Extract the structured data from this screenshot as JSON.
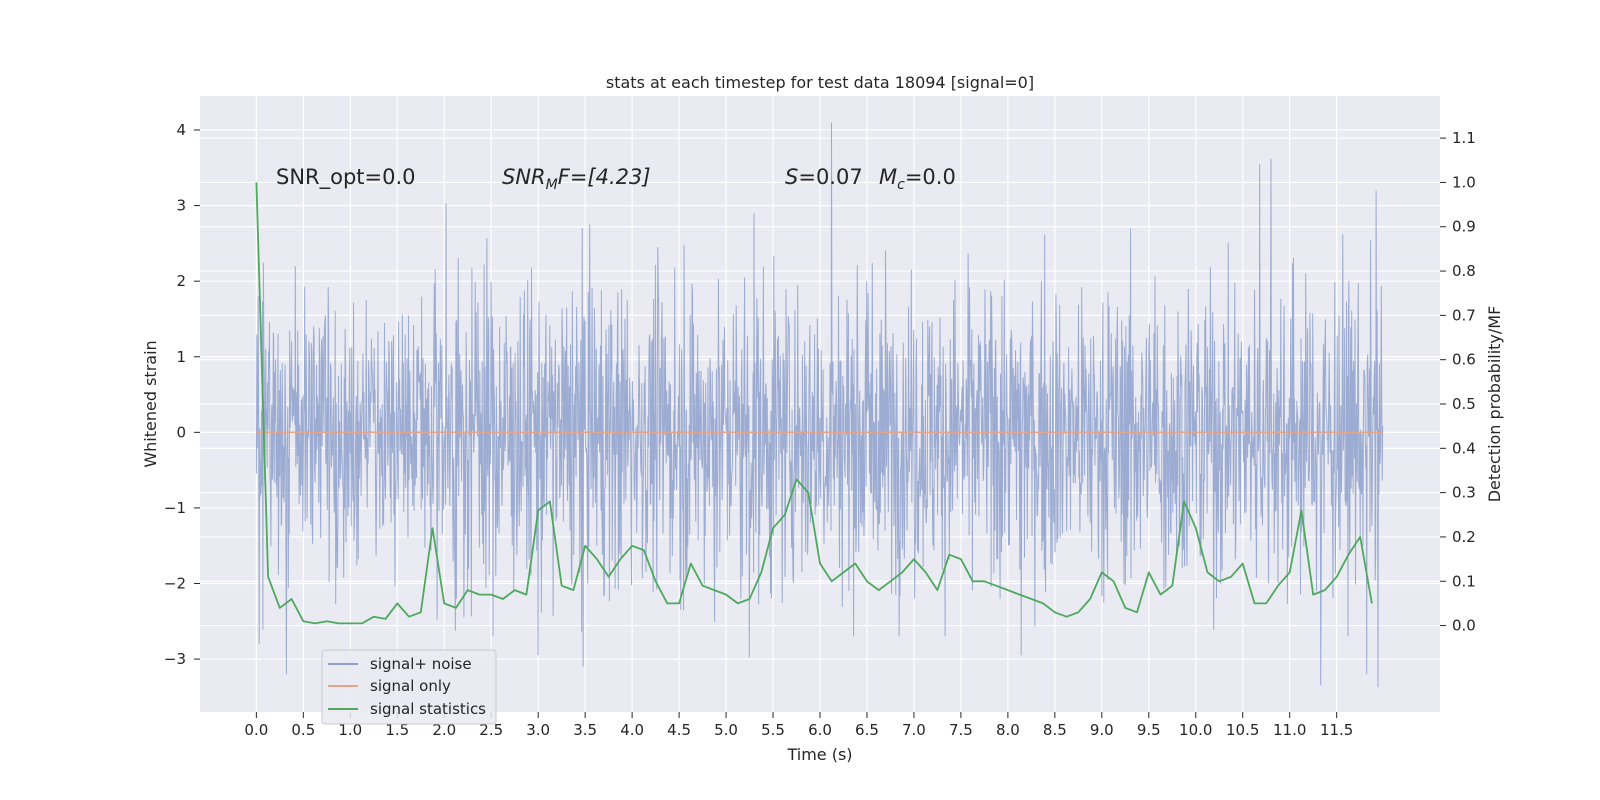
{
  "chart_data": {
    "type": "line",
    "title": "stats at each timestep for test data 18094 [signal=0]",
    "xlabel": "Time (s)",
    "ylabel": "Whitened strain",
    "ylabel_right": "Detection probability/MF",
    "x_ticks": [
      "0.0",
      "0.5",
      "1.0",
      "1.5",
      "2.0",
      "2.5",
      "3.0",
      "3.5",
      "4.0",
      "4.5",
      "5.0",
      "5.5",
      "6.0",
      "6.5",
      "7.0",
      "7.5",
      "8.0",
      "8.5",
      "9.0",
      "9.5",
      "10.0",
      "10.5",
      "11.0",
      "11.5"
    ],
    "y_ticks": [
      "−3",
      "−2",
      "−1",
      "0",
      "1",
      "2",
      "3",
      "4"
    ],
    "y2_ticks": [
      "0.0",
      "0.1",
      "0.2",
      "0.3",
      "0.4",
      "0.5",
      "0.6",
      "0.7",
      "0.8",
      "0.9",
      "1.0",
      "1.1"
    ],
    "xlim": [
      -0.6,
      12.6
    ],
    "ylim": [
      -3.7,
      4.45
    ],
    "y2lim": [
      -0.195,
      1.195
    ],
    "grid": true,
    "legend_position": "lower-left",
    "annotations": {
      "snr_opt": "SNR_opt=0.0",
      "snr_mf_base": "SNR",
      "snr_mf_sub": "M",
      "snr_mf_rest": "F=[4.23]",
      "s_stat_sym": "S",
      "s_stat_val": "=0.07",
      "mc_sym": "M",
      "mc_sub": "c",
      "mc_val": "=0.0"
    },
    "series": [
      {
        "name": "signal+ noise",
        "color": "#8da0cb",
        "kind": "noise",
        "x_range": [
          0.0,
          11.99
        ],
        "typical_amplitude": 1.0,
        "extremes": [
          {
            "x": 0.02,
            "y": 1.8
          },
          {
            "x": 0.03,
            "y": -2.8
          },
          {
            "x": 0.32,
            "y": -3.2
          },
          {
            "x": 2.02,
            "y": 3.03
          },
          {
            "x": 3.0,
            "y": -2.95
          },
          {
            "x": 3.48,
            "y": -3.1
          },
          {
            "x": 3.55,
            "y": 2.75
          },
          {
            "x": 5.25,
            "y": -2.98
          },
          {
            "x": 5.3,
            "y": 2.9
          },
          {
            "x": 6.12,
            "y": 4.1
          },
          {
            "x": 8.14,
            "y": -2.95
          },
          {
            "x": 10.68,
            "y": 3.55
          },
          {
            "x": 10.8,
            "y": 3.62
          },
          {
            "x": 11.33,
            "y": -3.35
          },
          {
            "x": 11.82,
            "y": -3.2
          },
          {
            "x": 11.92,
            "y": 3.2
          },
          {
            "x": 11.94,
            "y": -3.37
          }
        ]
      },
      {
        "name": "signal only",
        "color": "#e5a58a",
        "x": [
          0.0,
          11.99
        ],
        "y": [
          0.0,
          0.0
        ]
      },
      {
        "name": "signal statistics",
        "color": "#4ea85e",
        "axis": "right",
        "x": [
          0.0,
          0.125,
          0.25,
          0.375,
          0.5,
          0.625,
          0.75,
          0.875,
          1.0,
          1.125,
          1.25,
          1.375,
          1.5,
          1.625,
          1.75,
          1.875,
          2.0,
          2.125,
          2.25,
          2.375,
          2.5,
          2.625,
          2.75,
          2.875,
          3.0,
          3.125,
          3.25,
          3.375,
          3.5,
          3.625,
          3.75,
          3.875,
          4.0,
          4.125,
          4.25,
          4.375,
          4.5,
          4.625,
          4.75,
          4.875,
          5.0,
          5.125,
          5.25,
          5.375,
          5.5,
          5.625,
          5.75,
          5.875,
          6.0,
          6.125,
          6.25,
          6.375,
          6.5,
          6.625,
          6.75,
          6.875,
          7.0,
          7.125,
          7.25,
          7.375,
          7.5,
          7.625,
          7.75,
          7.875,
          8.0,
          8.125,
          8.25,
          8.375,
          8.5,
          8.625,
          8.75,
          8.875,
          9.0,
          9.125,
          9.25,
          9.375,
          9.5,
          9.625,
          9.75,
          9.875,
          10.0,
          10.125,
          10.25,
          10.375,
          10.5,
          10.625,
          10.75,
          10.875,
          11.0,
          11.125,
          11.25,
          11.375,
          11.5,
          11.625,
          11.75,
          11.875
        ],
        "y": [
          1.0,
          0.11,
          0.04,
          0.06,
          0.01,
          0.005,
          0.01,
          0.005,
          0.005,
          0.005,
          0.02,
          0.015,
          0.05,
          0.02,
          0.03,
          0.22,
          0.05,
          0.04,
          0.08,
          0.07,
          0.07,
          0.06,
          0.08,
          0.07,
          0.26,
          0.28,
          0.09,
          0.08,
          0.18,
          0.15,
          0.11,
          0.15,
          0.18,
          0.17,
          0.1,
          0.05,
          0.05,
          0.14,
          0.09,
          0.08,
          0.07,
          0.05,
          0.06,
          0.12,
          0.22,
          0.25,
          0.33,
          0.3,
          0.14,
          0.1,
          0.12,
          0.14,
          0.1,
          0.08,
          0.1,
          0.12,
          0.15,
          0.12,
          0.08,
          0.16,
          0.15,
          0.1,
          0.1,
          0.09,
          0.08,
          0.07,
          0.06,
          0.05,
          0.03,
          0.02,
          0.03,
          0.06,
          0.12,
          0.1,
          0.04,
          0.03,
          0.12,
          0.07,
          0.09,
          0.28,
          0.22,
          0.12,
          0.1,
          0.11,
          0.14,
          0.05,
          0.05,
          0.09,
          0.12,
          0.26,
          0.07,
          0.08,
          0.11,
          0.16,
          0.2,
          0.05
        ]
      }
    ]
  }
}
